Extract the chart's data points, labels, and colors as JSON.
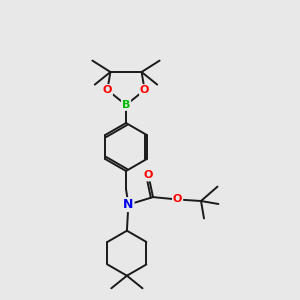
{
  "bg_color": "#e8e8e8",
  "bond_color": "#1a1a1a",
  "atom_colors": {
    "B": "#00bb00",
    "O": "#ff0000",
    "N": "#0000ee",
    "C": "#1a1a1a"
  },
  "bond_width": 1.4,
  "figsize": [
    3.0,
    3.0
  ],
  "dpi": 100
}
